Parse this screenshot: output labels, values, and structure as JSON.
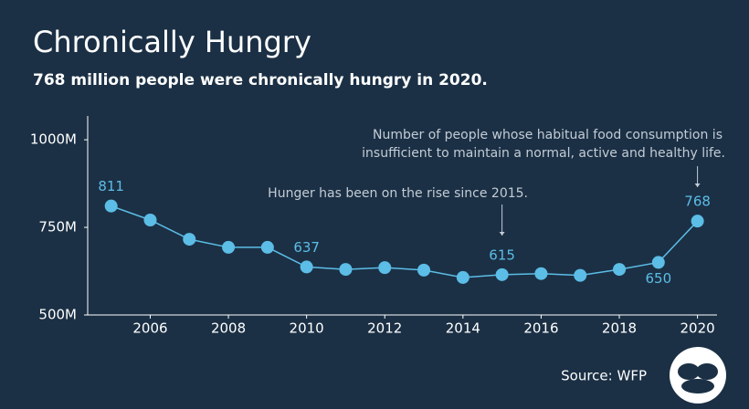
{
  "chart_data": {
    "type": "line",
    "title": "Chronically Hungry",
    "subtitle": "768 million people were chronically hungry in 2020.",
    "x": [
      2005,
      2006,
      2007,
      2008,
      2009,
      2010,
      2011,
      2012,
      2013,
      2014,
      2015,
      2016,
      2017,
      2018,
      2019,
      2020
    ],
    "series": [
      {
        "name": "Chronically hungry people",
        "color": "#5cbde6",
        "values": [
          811,
          771,
          716,
          693,
          693,
          637,
          630,
          635,
          628,
          607,
          615,
          618,
          613,
          630,
          650,
          768
        ],
        "value_labels": [
          "811",
          null,
          null,
          null,
          null,
          "637",
          null,
          null,
          null,
          null,
          "615",
          null,
          null,
          null,
          "650",
          "768"
        ]
      }
    ],
    "xlim": [
      2004.4,
      2020.5
    ],
    "xticks": [
      2006,
      2008,
      2010,
      2012,
      2014,
      2016,
      2018,
      2020
    ],
    "ylim": [
      500,
      1068
    ],
    "yticks": [
      {
        "value": 500,
        "label": "500M"
      },
      {
        "value": 750,
        "label": "750M"
      },
      {
        "value": 1000,
        "label": "1000M"
      }
    ],
    "grid": false,
    "annotations": [
      "Hunger has been on the rise since 2015.",
      [
        "Number of people whose habitual food consumption is",
        "insufficient to maintain a normal, active and healthy life."
      ]
    ],
    "source": "Source: WFP"
  }
}
